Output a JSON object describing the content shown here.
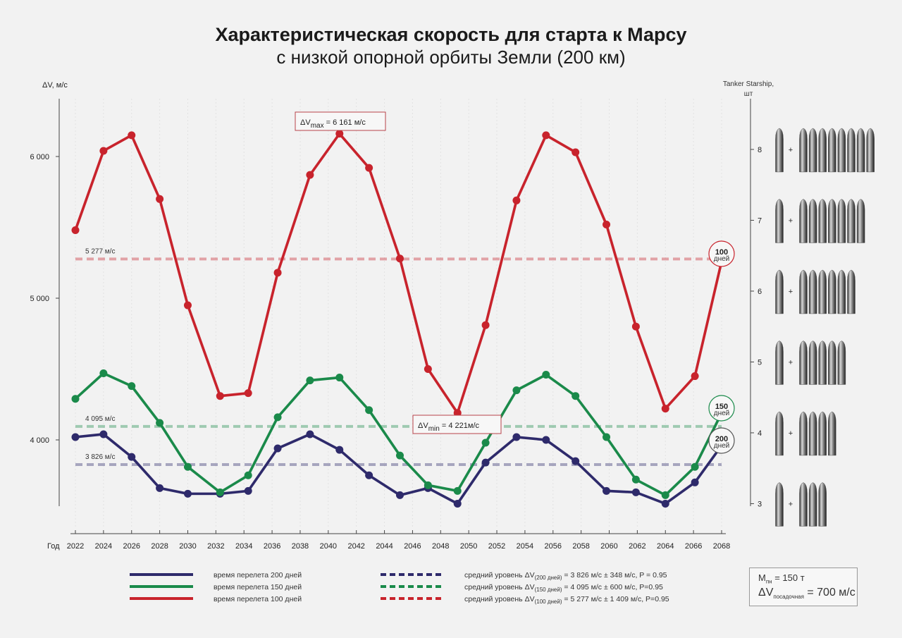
{
  "header": {
    "title": "Характеристическая скорость для старта к Марсу",
    "subtitle": "с низкой опорной орбиты Земли (200 км)"
  },
  "chart_data": {
    "type": "line",
    "ylabel": "ΔV, м/с",
    "xlabel": "Год",
    "y2label_line1": "Tanker Starship,",
    "y2label_line2": "шт",
    "ylim": [
      3550,
      6400
    ],
    "xlim": [
      2022,
      2068
    ],
    "y_ticks": [
      4000,
      5000,
      6000
    ],
    "y_tick_labels": [
      "4 000",
      "5 000",
      "6 000"
    ],
    "x_ticks": [
      2022,
      2024,
      2026,
      2028,
      2030,
      2032,
      2034,
      2036,
      2038,
      2040,
      2042,
      2044,
      2046,
      2048,
      2050,
      2052,
      2054,
      2056,
      2058,
      2060,
      2062,
      2064,
      2066,
      2068
    ],
    "y2_ticks": [
      3,
      4,
      5,
      6,
      7,
      8
    ],
    "y2_values_dv": [
      3550,
      4050,
      4550,
      5050,
      5550,
      6050
    ],
    "tankers": [
      {
        "count": 3,
        "plus": "+"
      },
      {
        "count": 4,
        "plus": "+"
      },
      {
        "count": 5,
        "plus": "+"
      },
      {
        "count": 6,
        "plus": "+"
      },
      {
        "count": 7,
        "plus": "+"
      },
      {
        "count": 8,
        "plus": "+"
      }
    ],
    "x": [
      2022,
      2024,
      2026,
      2028,
      2030,
      2032.3,
      2034.3,
      2036.4,
      2038.7,
      2040.8,
      2042.9,
      2045.1,
      2047.1,
      2049.2,
      2051.2,
      2053.4,
      2055.5,
      2057.6,
      2059.8,
      2061.9,
      2064,
      2066.1,
      2068
    ],
    "series": [
      {
        "name": "время перелета 200 дней",
        "color": "#2e2a6b",
        "mean": 3826,
        "values": [
          4020,
          4040,
          3880,
          3660,
          3620,
          3620,
          3640,
          3940,
          4040,
          3930,
          3750,
          3610,
          3660,
          3550,
          3840,
          4020,
          4000,
          3850,
          3640,
          3630,
          3550,
          3700,
          3960
        ]
      },
      {
        "name": "время перелета 150 дней",
        "color": "#1a8a4a",
        "mean": 4095,
        "values": [
          4290,
          4470,
          4380,
          4120,
          3810,
          3630,
          3750,
          4160,
          4420,
          4440,
          4210,
          3890,
          3680,
          3640,
          3980,
          4350,
          4460,
          4310,
          4020,
          3720,
          3610,
          3810,
          4190
        ]
      },
      {
        "name": "время перелета 100 дней",
        "color": "#c8232c",
        "mean": 5277,
        "values": [
          5480,
          6040,
          6150,
          5700,
          4950,
          4310,
          4330,
          5180,
          5870,
          6161,
          5920,
          5280,
          4500,
          4190,
          4810,
          5690,
          6150,
          6030,
          5520,
          4800,
          4221,
          4450,
          5260
        ]
      }
    ],
    "mean_labels": [
      "3 826 м/с",
      "4 095 м/с",
      "5 277 м/с"
    ],
    "end_badges": [
      {
        "value": "200",
        "unit": "дней"
      },
      {
        "value": "150",
        "unit": "дней"
      },
      {
        "value": "100",
        "unit": "дней"
      }
    ],
    "annotations": {
      "max_prefix": "ΔV",
      "max_sub": "max",
      "max_suffix": " = 6 161 м/с",
      "min_prefix": "ΔV",
      "min_sub": "min",
      "min_suffix": " = 4 221м/с"
    },
    "legend_lines": [
      "время перелета 200 дней",
      "время перелета 150 дней",
      "время перелета 100 дней"
    ],
    "legend_means": [
      {
        "pre": "средний уровень ΔV",
        "sub": "(200 дней)",
        "post": " = 3 826 м/с ± 348 м/с, P = 0.95"
      },
      {
        "pre": "средний уровень ΔV",
        "sub": "(150 дней)",
        "post": " = 4 095 м/с ± 600 м/с, P=0.95"
      },
      {
        "pre": "средний уровень ΔV",
        "sub": "(100 дней)",
        "post": " = 5 277 м/с ± 1 409 м/с, P=0.95"
      }
    ]
  },
  "mass_box": {
    "m_label": "M",
    "m_sub": "пн",
    "m_value": " = 150 т",
    "dv_label": "ΔV",
    "dv_sub": "посадочная",
    "dv_value": " = 700 м/с"
  }
}
